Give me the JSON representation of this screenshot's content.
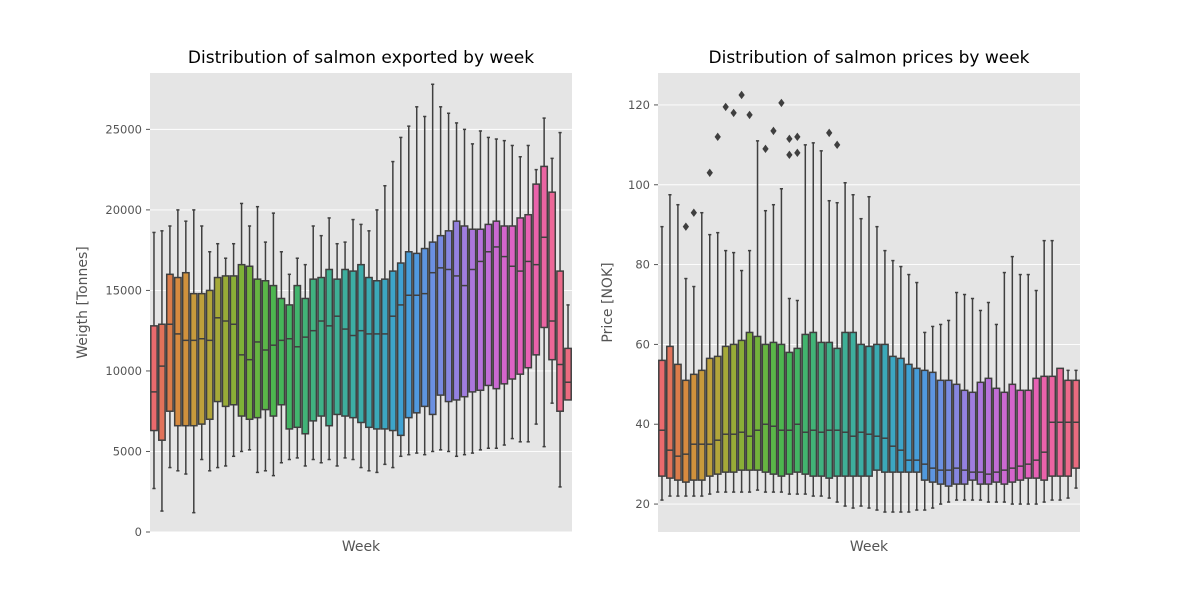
{
  "chart_data": [
    {
      "type": "box",
      "title": "Distribution of salmon exported by week",
      "xlabel": "Week",
      "ylabel": "Weigth [Tonnes]",
      "ylim": [
        0,
        28500
      ],
      "yticks": [
        0,
        5000,
        10000,
        15000,
        20000,
        25000
      ],
      "grid": true,
      "x_tick_labels_shown": false,
      "weeks": [
        1,
        2,
        3,
        4,
        5,
        6,
        7,
        8,
        9,
        10,
        11,
        12,
        13,
        14,
        15,
        16,
        17,
        18,
        19,
        20,
        21,
        22,
        23,
        24,
        25,
        26,
        27,
        28,
        29,
        30,
        31,
        32,
        33,
        34,
        35,
        36,
        37,
        38,
        39,
        40,
        41,
        42,
        43,
        44,
        45,
        46,
        47,
        48,
        49,
        50,
        51,
        52,
        53
      ],
      "whisker_low": [
        2700,
        1300,
        4000,
        3800,
        3600,
        1200,
        4500,
        3800,
        4000,
        4100,
        4700,
        5000,
        5100,
        3700,
        3800,
        3500,
        4300,
        4500,
        4600,
        4100,
        4500,
        4300,
        4500,
        4100,
        4600,
        4500,
        4000,
        3800,
        3700,
        4200,
        4000,
        4700,
        4800,
        4900,
        4800,
        5000,
        5100,
        5000,
        4700,
        4800,
        4900,
        5100,
        5200,
        5200,
        5400,
        5800,
        5600,
        5600,
        6700,
        5300,
        8000,
        2800,
        8300
      ],
      "q1": [
        6300,
        5700,
        7500,
        6600,
        6600,
        6600,
        6700,
        7000,
        8100,
        7800,
        7900,
        7200,
        7000,
        7100,
        7600,
        7200,
        7900,
        6400,
        6500,
        6100,
        6900,
        7200,
        6600,
        7300,
        7200,
        7100,
        6800,
        6500,
        6400,
        6400,
        6300,
        6000,
        7100,
        7400,
        7800,
        7300,
        8500,
        8100,
        8200,
        8400,
        8700,
        8800,
        9100,
        8900,
        9200,
        9500,
        9800,
        10200,
        11000,
        12700,
        10700,
        7500,
        8200
      ],
      "median": [
        8700,
        10300,
        12900,
        12300,
        11900,
        11900,
        12000,
        11900,
        13300,
        13100,
        12900,
        11000,
        10700,
        11800,
        11300,
        11600,
        11900,
        12000,
        11500,
        12100,
        12500,
        13100,
        12800,
        13400,
        12600,
        12200,
        12500,
        12300,
        12300,
        12300,
        13400,
        14100,
        14700,
        14700,
        14800,
        16100,
        16400,
        16300,
        15900,
        15300,
        16300,
        16800,
        17400,
        17700,
        17100,
        16500,
        16200,
        16800,
        16600,
        18300,
        13100,
        10400,
        9300
      ],
      "q3": [
        12800,
        12900,
        16000,
        15800,
        16100,
        14800,
        14800,
        15000,
        15800,
        15900,
        15900,
        16600,
        16500,
        15700,
        15600,
        15300,
        14500,
        14100,
        15300,
        14500,
        15700,
        15800,
        16300,
        15700,
        16300,
        16200,
        16600,
        15800,
        15600,
        15700,
        16200,
        16700,
        17400,
        17300,
        17600,
        18000,
        18400,
        18700,
        19300,
        19000,
        18800,
        18800,
        19100,
        19300,
        19000,
        19000,
        19500,
        19700,
        21600,
        22700,
        21100,
        16200,
        11400
      ],
      "whisker_high": [
        18600,
        18700,
        19000,
        20000,
        19300,
        20000,
        19000,
        17400,
        17900,
        17000,
        17900,
        20400,
        19000,
        20200,
        18000,
        19800,
        17400,
        16000,
        17000,
        16600,
        19000,
        18400,
        19500,
        17900,
        18000,
        19400,
        19100,
        18700,
        20000,
        21500,
        23000,
        24500,
        25200,
        26400,
        25800,
        27800,
        26400,
        26000,
        25400,
        25000,
        24100,
        24900,
        24500,
        24400,
        24300,
        24000,
        23300,
        24000,
        22500,
        25700,
        23200,
        24800,
        14100
      ],
      "colors": [
        "#ea6a6d",
        "#e1725a",
        "#db7c4a",
        "#d78a3f",
        "#d0913c",
        "#c79a3c",
        "#bda03b",
        "#b1a53a",
        "#a5a938",
        "#98ab37",
        "#8aae37",
        "#7eb137",
        "#73b23b",
        "#66b541",
        "#5ab648",
        "#4db54f",
        "#45b559",
        "#43b464",
        "#42b46e",
        "#41b377",
        "#40b280",
        "#3fb188",
        "#3eb08f",
        "#3eaf96",
        "#3dae9d",
        "#3caea4",
        "#3badab",
        "#3baab2",
        "#3ba9b9",
        "#3ca6c2",
        "#3da4c9",
        "#3fa1d2",
        "#469dd9",
        "#5099de",
        "#5d95e0",
        "#6b90e1",
        "#788be1",
        "#8686e1",
        "#9481e0",
        "#a07ddf",
        "#ac77dd",
        "#b772db",
        "#c16dd7",
        "#cb69d2",
        "#d465cc",
        "#dc63c5",
        "#e261bd",
        "#e761b4",
        "#ea62ab",
        "#eb64a2",
        "#ec6797",
        "#ec698a",
        "#eb6b7f"
      ]
    },
    {
      "type": "box",
      "title": "Distribution of salmon prices by week",
      "xlabel": "Week",
      "ylabel": "Price [NOK]",
      "ylim": [
        13,
        128
      ],
      "yticks": [
        20,
        40,
        60,
        80,
        100,
        120
      ],
      "grid": true,
      "x_tick_labels_shown": false,
      "weeks": [
        1,
        2,
        3,
        4,
        5,
        6,
        7,
        8,
        9,
        10,
        11,
        12,
        13,
        14,
        15,
        16,
        17,
        18,
        19,
        20,
        21,
        22,
        23,
        24,
        25,
        26,
        27,
        28,
        29,
        30,
        31,
        32,
        33,
        34,
        35,
        36,
        37,
        38,
        39,
        40,
        41,
        42,
        43,
        44,
        45,
        46,
        47,
        48,
        49,
        50,
        51,
        52,
        53
      ],
      "whisker_low": [
        21,
        22,
        22,
        22,
        22,
        22,
        22.5,
        23,
        23,
        23,
        23,
        23,
        23.5,
        23,
        23,
        23,
        22.5,
        22.5,
        22.5,
        22,
        22,
        21.5,
        20.5,
        19.5,
        19,
        19.5,
        19,
        18.5,
        18,
        18,
        18,
        18,
        18.5,
        18.5,
        19,
        20,
        20.5,
        21,
        21,
        21,
        21,
        20.5,
        20.5,
        20.5,
        20,
        20,
        20,
        20,
        20.5,
        21,
        21,
        21.5,
        24
      ],
      "q1": [
        27,
        26.5,
        26,
        25.5,
        26,
        26,
        27,
        27.5,
        28,
        28,
        28.5,
        28.5,
        28.5,
        28,
        27.5,
        27,
        27.5,
        28,
        27.5,
        27,
        27,
        26.5,
        27,
        27,
        27,
        27,
        27,
        28.5,
        28,
        28,
        28,
        28,
        28,
        26,
        25.5,
        25,
        24.5,
        25,
        25,
        26,
        25,
        25,
        25.5,
        25,
        25.5,
        26,
        26.5,
        26.5,
        26,
        27,
        27,
        27,
        29
      ],
      "median": [
        38.5,
        33.5,
        32,
        32.5,
        35,
        35,
        35,
        36,
        37.5,
        37.5,
        38,
        37,
        38.5,
        40,
        39.5,
        38.5,
        38.5,
        40,
        38,
        38.5,
        38,
        38.5,
        38.5,
        38,
        37,
        38,
        37.5,
        37,
        36.5,
        34.5,
        33.5,
        31,
        31,
        30,
        29,
        28.5,
        28.5,
        29,
        28.5,
        28,
        28,
        27.5,
        28,
        28.5,
        29,
        29.5,
        30,
        31,
        33,
        40.5,
        40.5,
        40.5,
        40.5
      ],
      "q3": [
        56,
        59.5,
        55,
        51,
        52.5,
        53.5,
        56.5,
        57,
        59.5,
        60,
        61,
        63,
        62,
        60,
        60.5,
        60,
        58,
        59,
        62.5,
        63,
        60.5,
        60.5,
        59,
        63,
        63,
        60,
        59.5,
        60,
        60,
        57,
        56.5,
        55,
        54,
        53.5,
        53,
        51,
        51,
        50,
        48.5,
        48,
        50.5,
        51.5,
        49,
        48,
        50,
        48.5,
        48.5,
        51.5,
        52,
        52,
        54,
        51,
        51
      ],
      "whisker_high": [
        89.5,
        97.5,
        95,
        76.5,
        74.5,
        93,
        87.5,
        88,
        83.5,
        83,
        78.5,
        83.5,
        111,
        93.5,
        95,
        99,
        71.5,
        71,
        110,
        110.5,
        108.5,
        96,
        95.5,
        100.5,
        97.5,
        91.5,
        97,
        89.5,
        83.5,
        81,
        79.5,
        77.5,
        75.5,
        63,
        64.5,
        65,
        66,
        73,
        72.5,
        71.5,
        68.5,
        70.5,
        65,
        78,
        82,
        77.5,
        77.5,
        73.5,
        86,
        86,
        53.5,
        53.5,
        53.5
      ],
      "outliers": [
        {
          "week": 4,
          "value": 89.5
        },
        {
          "week": 5,
          "value": 93
        },
        {
          "week": 7,
          "value": 103
        },
        {
          "week": 8,
          "value": 112
        },
        {
          "week": 9,
          "value": 119.5
        },
        {
          "week": 10,
          "value": 118
        },
        {
          "week": 11,
          "value": 122.5
        },
        {
          "week": 12,
          "value": 117.5
        },
        {
          "week": 14,
          "value": 109
        },
        {
          "week": 15,
          "value": 113.5
        },
        {
          "week": 16,
          "value": 120.5
        },
        {
          "week": 17,
          "value": 111.5
        },
        {
          "week": 17,
          "value": 107.5
        },
        {
          "week": 18,
          "value": 112
        },
        {
          "week": 18,
          "value": 108
        },
        {
          "week": 22,
          "value": 113
        },
        {
          "week": 23,
          "value": 110
        }
      ],
      "colors": [
        "#ea6a6d",
        "#e1725a",
        "#db7c4a",
        "#d78a3f",
        "#d0913c",
        "#c79a3c",
        "#bda03b",
        "#b1a53a",
        "#a5a938",
        "#98ab37",
        "#8aae37",
        "#7eb137",
        "#73b23b",
        "#66b541",
        "#5ab648",
        "#4db54f",
        "#45b559",
        "#43b464",
        "#42b46e",
        "#41b377",
        "#40b280",
        "#3fb188",
        "#3eb08f",
        "#3eaf96",
        "#3dae9d",
        "#3caea4",
        "#3badab",
        "#3baab2",
        "#3ba9b9",
        "#3ca6c2",
        "#3da4c9",
        "#3fa1d2",
        "#469dd9",
        "#5099de",
        "#5d95e0",
        "#6b90e1",
        "#788be1",
        "#8686e1",
        "#9481e0",
        "#a07ddf",
        "#ac77dd",
        "#b772db",
        "#c16dd7",
        "#cb69d2",
        "#d465cc",
        "#dc63c5",
        "#e261bd",
        "#e761b4",
        "#ea62ab",
        "#eb64a2",
        "#ec6797",
        "#ec698a",
        "#eb6b7f"
      ]
    }
  ],
  "style": {
    "panel_background": "#e5e5e5",
    "grid_color": "#ffffff",
    "box_edge_color": "#3f3f3f",
    "text_color": "#555555"
  }
}
